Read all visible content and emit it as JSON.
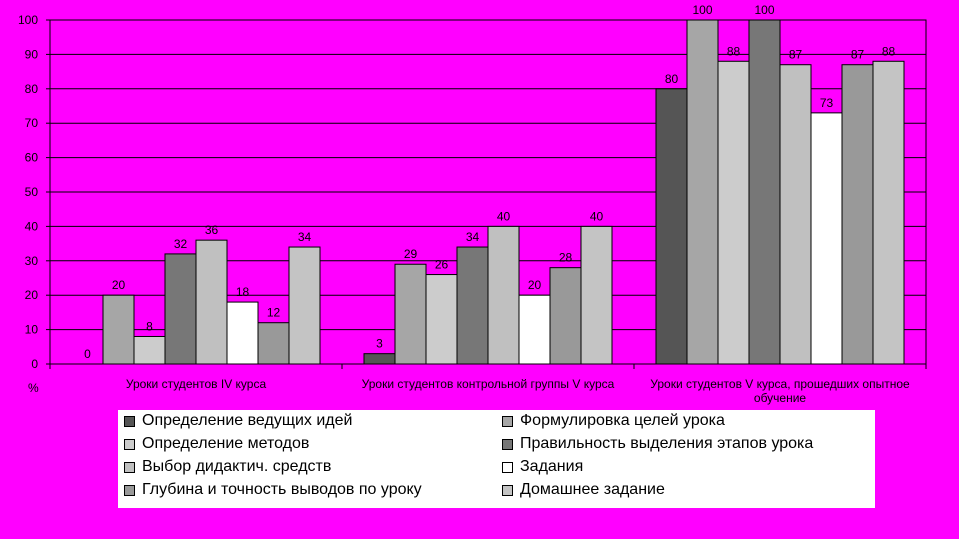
{
  "chart_data": {
    "type": "bar",
    "ylabel": "%",
    "ylim": [
      0,
      100
    ],
    "yticks": [
      0,
      10,
      20,
      30,
      40,
      50,
      60,
      70,
      80,
      90,
      100
    ],
    "grid": true,
    "legend_position": "bottom",
    "categories": [
      "Уроки студентов IV курса",
      "Уроки студентов контрольной группы V курса",
      "Уроки студентов V курса, прошедших опытное обучение"
    ],
    "series": [
      {
        "name": "Определение ведущих идей",
        "color": "#555555",
        "values": [
          0,
          3,
          80
        ]
      },
      {
        "name": "Формулировка целей урока",
        "color": "#a6a6a6",
        "values": [
          20,
          29,
          100
        ]
      },
      {
        "name": "Определение методов",
        "color": "#cccccc",
        "values": [
          8,
          26,
          88
        ]
      },
      {
        "name": "Правильность выделения  этапов урока",
        "color": "#777777",
        "values": [
          32,
          34,
          100
        ]
      },
      {
        "name": "Выбор дидактич. средств",
        "color": "#c0c0c0",
        "values": [
          36,
          40,
          87
        ]
      },
      {
        "name": "Задания",
        "color": "#ffffff",
        "values": [
          18,
          20,
          73
        ]
      },
      {
        "name": "Глубина и точность выводов по уроку",
        "color": "#999999",
        "values": [
          12,
          28,
          87
        ]
      },
      {
        "name": "Домашнее задание",
        "color": "#c4c4c4",
        "values": [
          34,
          40,
          88
        ]
      }
    ],
    "data_labels": [
      [
        "0",
        "3",
        "80"
      ],
      [
        "20",
        "29",
        "100"
      ],
      [
        "8",
        "26",
        "88"
      ],
      [
        "32",
        "34",
        "100"
      ],
      [
        "36",
        "40",
        "87"
      ],
      [
        "18",
        "20",
        "73"
      ],
      [
        "12",
        "28",
        "87"
      ],
      [
        "34",
        "40",
        "88"
      ]
    ]
  }
}
